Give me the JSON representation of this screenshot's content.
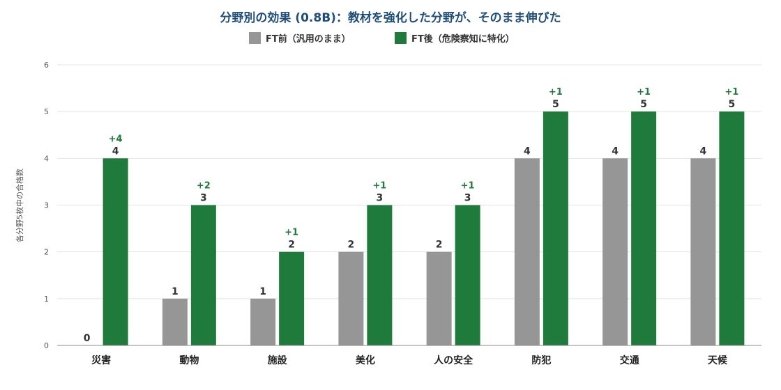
{
  "chart_data": {
    "type": "bar",
    "title": "分野別の効果 (0.8B)：教材を強化した分野が、そのまま伸びた",
    "ylabel": "各分野5枚中の合格数",
    "ylim": [
      0,
      6
    ],
    "yticks": [
      0,
      1,
      2,
      3,
      4,
      5,
      6
    ],
    "grid": true,
    "legend": "top-center",
    "categories": [
      "災害",
      "動物",
      "施設",
      "美化",
      "人の安全",
      "防犯",
      "交通",
      "天候"
    ],
    "series": [
      {
        "name": "FT前（汎用のまま）",
        "color": "#969696",
        "values": [
          0,
          1,
          1,
          2,
          2,
          4,
          4,
          4
        ]
      },
      {
        "name": "FT後（危険察知に特化）",
        "color": "#1e7b3c",
        "values": [
          4,
          3,
          2,
          3,
          3,
          5,
          5,
          5
        ]
      }
    ],
    "deltas": [
      "+4",
      "+2",
      "+1",
      "+1",
      "+1",
      "+1",
      "+1",
      "+1"
    ]
  }
}
